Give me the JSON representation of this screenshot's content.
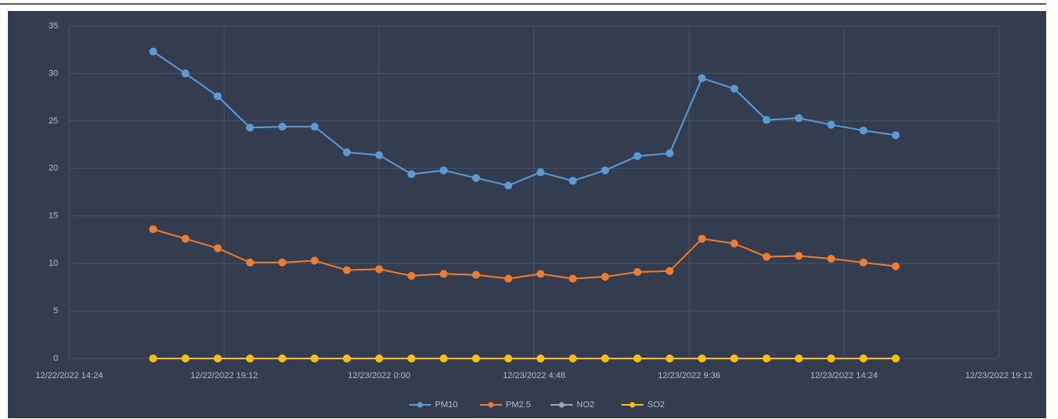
{
  "chart_data": {
    "type": "line",
    "x": [
      "2022-12-22T17:00",
      "2022-12-22T18:00",
      "2022-12-22T19:00",
      "2022-12-22T20:00",
      "2022-12-22T21:00",
      "2022-12-22T22:00",
      "2022-12-22T23:00",
      "2022-12-23T00:00",
      "2022-12-23T01:00",
      "2022-12-23T02:00",
      "2022-12-23T03:00",
      "2022-12-23T04:00",
      "2022-12-23T05:00",
      "2022-12-23T06:00",
      "2022-12-23T07:00",
      "2022-12-23T08:00",
      "2022-12-23T09:00",
      "2022-12-23T10:00",
      "2022-12-23T11:00",
      "2022-12-23T12:00",
      "2022-12-23T13:00",
      "2022-12-23T14:00",
      "2022-12-23T15:00",
      "2022-12-23T16:00"
    ],
    "xlim": [
      "2022-12-22T14:24",
      "2022-12-23T19:12"
    ],
    "xticks": [
      {
        "value": "2022-12-22T14:24",
        "label": "12/22/2022 14:24"
      },
      {
        "value": "2022-12-22T19:12",
        "label": "12/22/2022 19:12"
      },
      {
        "value": "2022-12-23T00:00",
        "label": "12/23/2022 0:00"
      },
      {
        "value": "2022-12-23T04:48",
        "label": "12/23/2022 4:48"
      },
      {
        "value": "2022-12-23T09:36",
        "label": "12/23/2022 9:36"
      },
      {
        "value": "2022-12-23T14:24",
        "label": "12/23/2022 14:24"
      },
      {
        "value": "2022-12-23T19:12",
        "label": "12/23/2022 19:12"
      }
    ],
    "ylim": [
      0,
      35
    ],
    "yticks": [
      0,
      5,
      10,
      15,
      20,
      25,
      30,
      35
    ],
    "grid": true,
    "legend": "bottom",
    "series": [
      {
        "name": "PM10",
        "color": "#5b9bd5",
        "values": [
          32.3,
          30.0,
          27.6,
          24.3,
          24.4,
          24.4,
          21.7,
          21.4,
          19.4,
          19.8,
          19.0,
          18.2,
          19.6,
          18.7,
          19.8,
          21.3,
          21.6,
          29.5,
          28.4,
          25.1,
          25.3,
          24.6,
          24.0,
          23.5
        ]
      },
      {
        "name": "PM2.5",
        "color": "#ed7d31",
        "values": [
          13.6,
          12.6,
          11.6,
          10.1,
          10.1,
          10.3,
          9.3,
          9.4,
          8.7,
          8.9,
          8.8,
          8.4,
          8.9,
          8.4,
          8.6,
          9.1,
          9.2,
          12.6,
          12.1,
          10.7,
          10.8,
          10.5,
          10.1,
          9.7
        ]
      },
      {
        "name": "NO2",
        "color": "#a5a5a5",
        "values": [
          0,
          0,
          0,
          0,
          0,
          0,
          0,
          0,
          0,
          0,
          0,
          0,
          0,
          0,
          0,
          0,
          0,
          0,
          0,
          0,
          0,
          0,
          0,
          0
        ]
      },
      {
        "name": "SO2",
        "color": "#ffc000",
        "values": [
          0,
          0,
          0,
          0,
          0,
          0,
          0,
          0,
          0,
          0,
          0,
          0,
          0,
          0,
          0,
          0,
          0,
          0,
          0,
          0,
          0,
          0,
          0,
          0
        ]
      }
    ]
  }
}
